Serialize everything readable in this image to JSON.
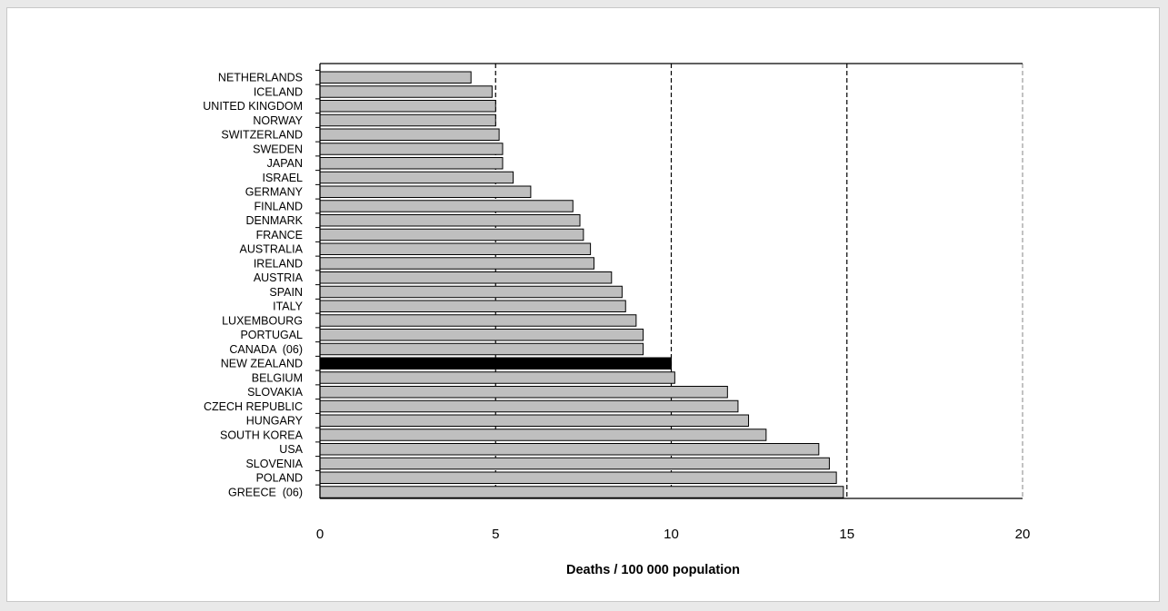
{
  "chart_data": {
    "type": "bar",
    "orientation": "horizontal",
    "title": "",
    "xlabel": "Deaths / 100 000 population",
    "ylabel": "",
    "xlim": [
      0,
      20
    ],
    "x_ticks": [
      "0",
      "5",
      "10",
      "15",
      "20"
    ],
    "grid": "vertical dashed at 5, 10, 15",
    "legend": "none",
    "categories": [
      "NETHERLANDS",
      "ICELAND",
      "UNITED KINGDOM",
      "NORWAY",
      "SWITZERLAND",
      "SWEDEN",
      "JAPAN",
      "ISRAEL",
      "GERMANY",
      "FINLAND",
      "DENMARK",
      "FRANCE",
      "AUSTRALIA",
      "IRELAND",
      "AUSTRIA",
      "SPAIN",
      "ITALY",
      "LUXEMBOURG",
      "PORTUGAL",
      "CANADA  (06)",
      "NEW ZEALAND",
      "BELGIUM",
      "SLOVAKIA",
      "CZECH REPUBLIC",
      "HUNGARY",
      "SOUTH KOREA",
      "USA",
      "SLOVENIA",
      "POLAND",
      "GREECE  (06)"
    ],
    "values": [
      4.3,
      4.9,
      5.0,
      5.0,
      5.1,
      5.2,
      5.2,
      5.5,
      6.0,
      7.2,
      7.4,
      7.5,
      7.7,
      7.8,
      8.3,
      8.6,
      8.7,
      9.0,
      9.2,
      9.2,
      10.0,
      10.1,
      11.6,
      11.9,
      12.2,
      12.7,
      14.2,
      14.5,
      14.7,
      14.9
    ],
    "highlight_category": "NEW ZEALAND",
    "colors": {
      "bar": "#bfbfbf",
      "highlight": "#000000",
      "bar_outline": "#000000",
      "grid": "#000000"
    }
  }
}
